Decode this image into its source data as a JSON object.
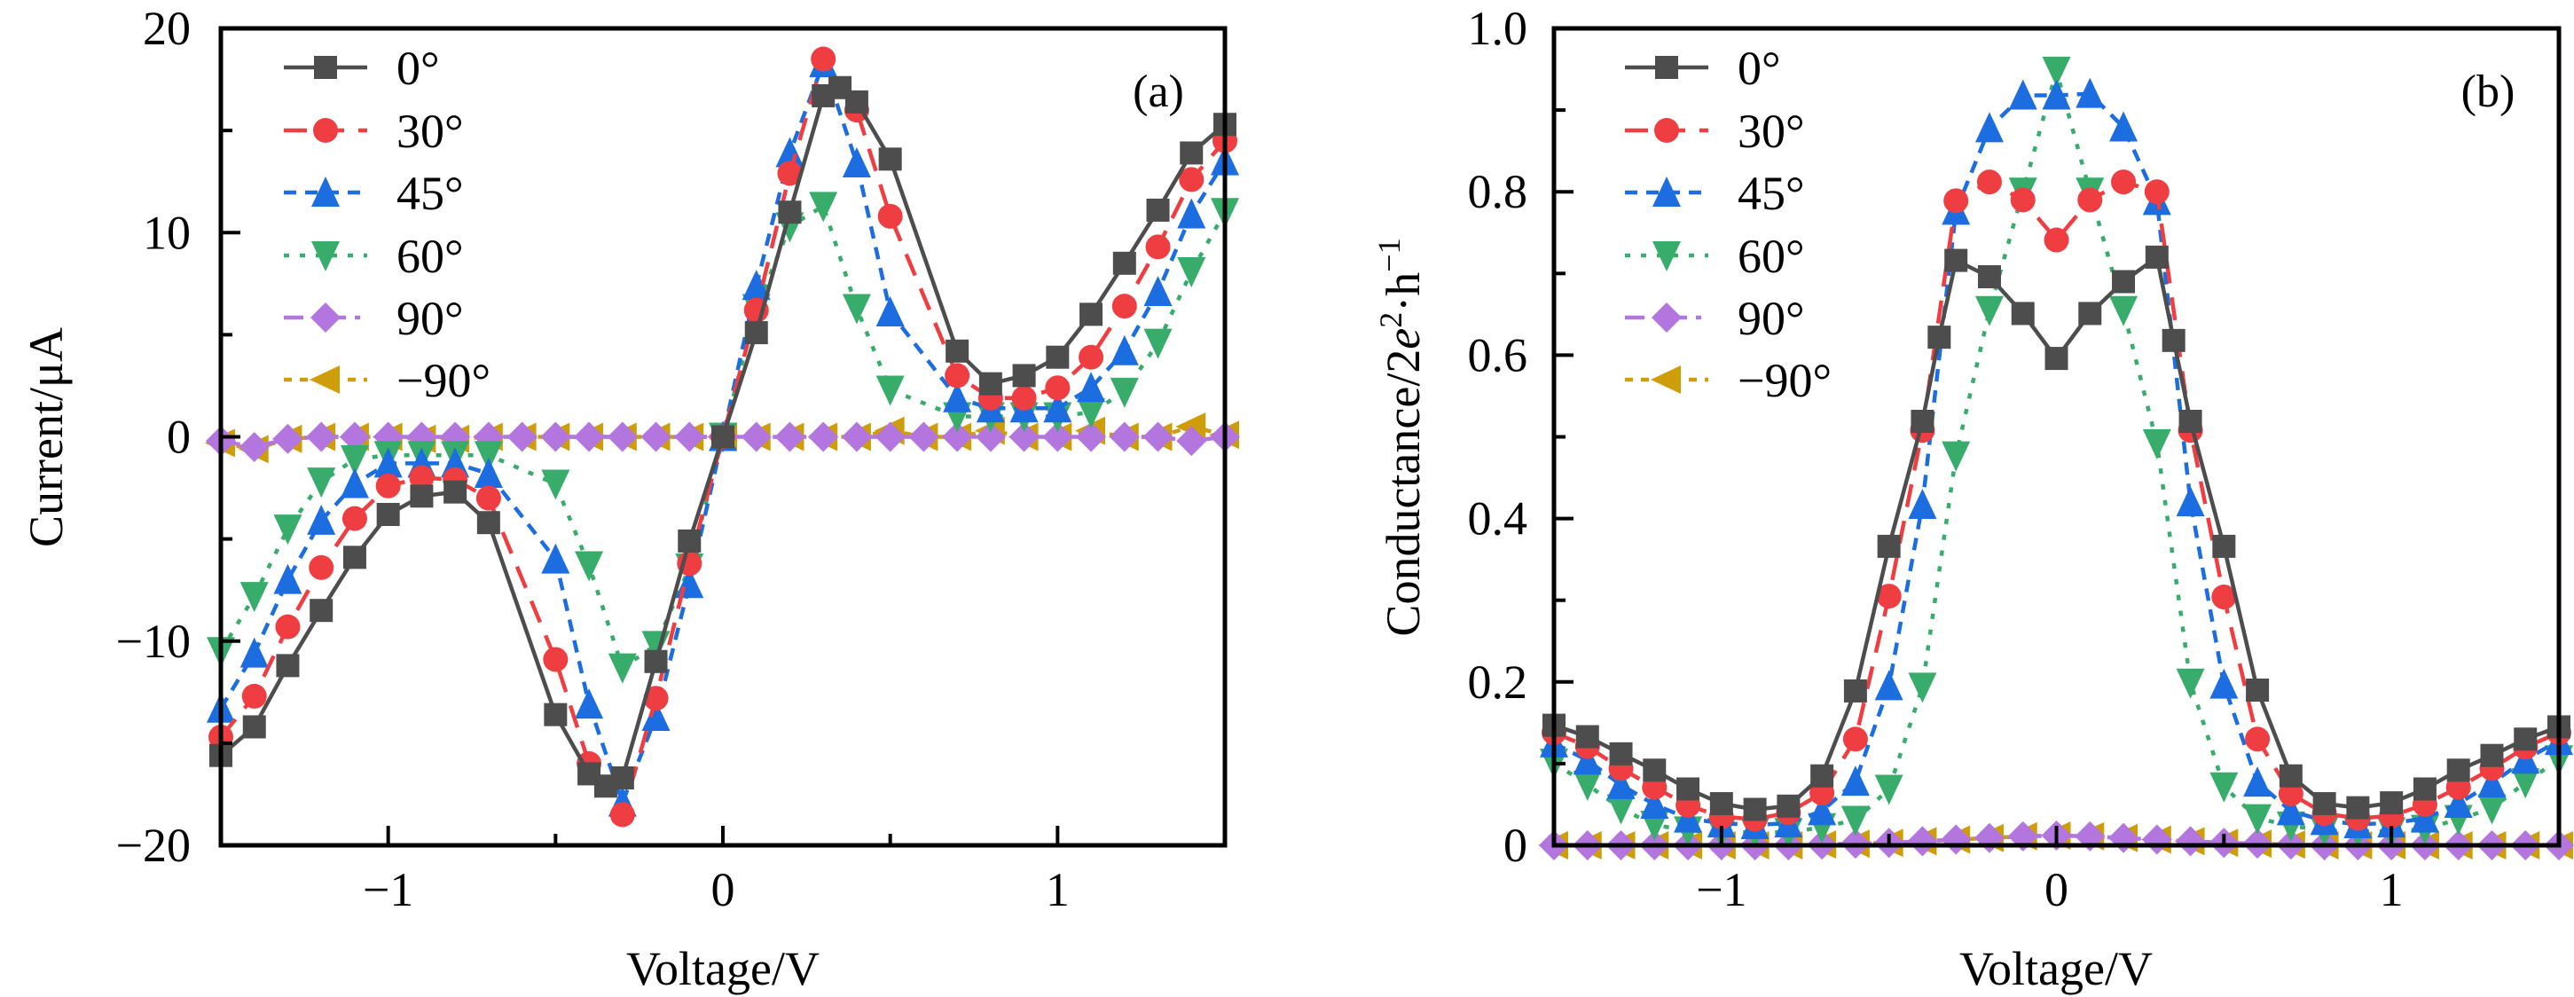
{
  "figure": {
    "panels": [
      {
        "id": "a",
        "panel_label": "(a)",
        "xlabel": "Voltage/V",
        "ylabel": "Current/μA"
      },
      {
        "id": "b",
        "panel_label": "(b)",
        "xlabel": "Voltage/V",
        "ylabel_main": "Conductance/2",
        "ylabel_e": "e",
        "ylabel_sup1": "2",
        "ylabel_mid": "·h",
        "ylabel_sup2": "−1"
      }
    ]
  },
  "chart_data": [
    {
      "type": "line",
      "title": "(a)",
      "xlabel": "Voltage/V",
      "ylabel": "Current/μA",
      "xlim": [
        -1.5,
        1.5
      ],
      "ylim": [
        -20,
        20
      ],
      "xticks": [
        {
          "value": -1,
          "label": "−1"
        },
        {
          "value": 0,
          "label": "0"
        },
        {
          "value": 1,
          "label": "1"
        }
      ],
      "xminor": [
        -0.5,
        0.5
      ],
      "yticks": [
        {
          "value": -20,
          "label": "−20"
        },
        {
          "value": -10,
          "label": "−10"
        },
        {
          "value": 0,
          "label": "0"
        },
        {
          "value": 10,
          "label": "10"
        },
        {
          "value": 20,
          "label": "20"
        }
      ],
      "yminor": [
        -15,
        -5,
        5,
        15
      ],
      "grid": false,
      "legend_position": "top-left",
      "series": [
        {
          "name": "0°",
          "color": "#4d4d4d",
          "marker": "square",
          "line": "solid",
          "x": [
            -1.5,
            -1.4,
            -1.3,
            -1.2,
            -1.1,
            -1.0,
            -0.9,
            -0.8,
            -0.7,
            -0.5,
            -0.4,
            -0.35,
            -0.3,
            -0.2,
            -0.1,
            0,
            0.1,
            0.2,
            0.3,
            0.35,
            0.4,
            0.5,
            0.7,
            0.8,
            0.9,
            1.0,
            1.1,
            1.2,
            1.3,
            1.4,
            1.5
          ],
          "y": [
            -15.6,
            -14.2,
            -11.2,
            -8.5,
            -5.9,
            -3.8,
            -2.9,
            -2.7,
            -4.2,
            -13.6,
            -16.5,
            -17.1,
            -16.7,
            -11.0,
            -5.1,
            0,
            5.1,
            11.0,
            16.7,
            17.1,
            16.4,
            13.6,
            4.2,
            2.6,
            3.0,
            3.9,
            6.0,
            8.5,
            11.1,
            13.9,
            15.3
          ]
        },
        {
          "name": "30°",
          "color": "#ef3e42",
          "marker": "circle",
          "line": "dash",
          "x": [
            -1.5,
            -1.4,
            -1.3,
            -1.2,
            -1.1,
            -1.0,
            -0.9,
            -0.8,
            -0.7,
            -0.5,
            -0.4,
            -0.3,
            -0.2,
            -0.1,
            0,
            0.1,
            0.2,
            0.3,
            0.4,
            0.5,
            0.7,
            0.8,
            0.9,
            1.0,
            1.1,
            1.2,
            1.3,
            1.4,
            1.5
          ],
          "y": [
            -14.7,
            -12.7,
            -9.3,
            -6.4,
            -4.0,
            -2.4,
            -2.0,
            -2.1,
            -3.0,
            -10.9,
            -16.0,
            -18.5,
            -12.8,
            -6.2,
            0,
            6.2,
            12.9,
            18.5,
            16.0,
            10.8,
            3.0,
            1.9,
            1.9,
            2.4,
            3.9,
            6.4,
            9.3,
            12.6,
            14.5
          ]
        },
        {
          "name": "45°",
          "color": "#1c6ee0",
          "marker": "triangle-up",
          "line": "short-dash",
          "x": [
            -1.5,
            -1.4,
            -1.3,
            -1.2,
            -1.1,
            -1.0,
            -0.9,
            -0.8,
            -0.7,
            -0.5,
            -0.4,
            -0.3,
            -0.2,
            -0.1,
            0,
            0.1,
            0.2,
            0.3,
            0.4,
            0.5,
            0.7,
            0.8,
            0.9,
            1.0,
            1.1,
            1.2,
            1.3,
            1.4,
            1.5
          ],
          "y": [
            -13.3,
            -10.6,
            -7.0,
            -4.1,
            -2.3,
            -1.3,
            -1.3,
            -1.3,
            -1.8,
            -6.0,
            -13.1,
            -17.9,
            -13.7,
            -7.2,
            0,
            7.4,
            13.9,
            18.3,
            13.4,
            6.1,
            1.9,
            1.4,
            1.4,
            1.4,
            2.4,
            4.2,
            7.1,
            10.9,
            13.5
          ]
        },
        {
          "name": "60°",
          "color": "#38ac6b",
          "marker": "triangle-down",
          "line": "dot",
          "x": [
            -1.5,
            -1.4,
            -1.3,
            -1.2,
            -1.1,
            -1.0,
            -0.9,
            -0.8,
            -0.7,
            -0.5,
            -0.4,
            -0.3,
            -0.2,
            -0.1,
            0,
            0.1,
            0.2,
            0.3,
            0.4,
            0.5,
            0.7,
            0.8,
            0.9,
            1.0,
            1.1,
            1.2,
            1.3,
            1.4,
            1.5
          ],
          "y": [
            -10.5,
            -7.8,
            -4.5,
            -2.2,
            -1.1,
            -0.9,
            -0.9,
            -0.9,
            -0.9,
            -2.3,
            -6.3,
            -11.3,
            -10.2,
            -6.4,
            0,
            6.3,
            10.3,
            11.3,
            6.3,
            2.3,
            1.0,
            1.0,
            1.0,
            1.0,
            1.2,
            2.2,
            4.6,
            8.1,
            11.0
          ]
        },
        {
          "name": "90°",
          "color": "#b276de",
          "marker": "diamond",
          "line": "dash-dot",
          "x": [
            -1.5,
            -1.4,
            -1.3,
            -1.2,
            -1.1,
            -1.0,
            -0.9,
            -0.8,
            -0.7,
            -0.6,
            -0.5,
            -0.4,
            -0.3,
            -0.2,
            -0.1,
            0,
            0.1,
            0.2,
            0.3,
            0.4,
            0.5,
            0.6,
            0.7,
            0.8,
            0.9,
            1.0,
            1.1,
            1.2,
            1.3,
            1.4,
            1.5
          ],
          "y": [
            -0.2,
            -0.5,
            -0.1,
            0,
            0,
            0,
            0,
            0,
            0,
            0,
            0,
            0,
            0,
            0,
            0,
            0,
            0,
            0,
            0,
            0,
            0,
            0,
            0,
            0,
            0,
            0,
            0,
            0,
            0,
            -0.2,
            0
          ]
        },
        {
          "name": "−90°",
          "color": "#d09d0a",
          "marker": "triangle-left",
          "line": "short-dot",
          "x": [
            -1.5,
            -1.4,
            -1.3,
            -1.2,
            -1.1,
            -1.0,
            -0.9,
            -0.8,
            -0.7,
            -0.6,
            -0.5,
            -0.4,
            -0.3,
            -0.2,
            -0.1,
            0,
            0.1,
            0.2,
            0.3,
            0.4,
            0.5,
            0.6,
            0.7,
            0.8,
            0.9,
            1.0,
            1.1,
            1.2,
            1.3,
            1.4,
            1.5
          ],
          "y": [
            -0.3,
            -0.6,
            -0.1,
            0,
            0,
            0,
            -0.1,
            -0.1,
            0,
            0,
            0,
            0,
            0,
            0,
            0,
            0,
            0,
            0,
            0,
            0,
            0.3,
            0,
            0,
            0.3,
            0,
            0,
            0.3,
            0,
            0,
            0.5,
            0.1
          ]
        }
      ]
    },
    {
      "type": "line",
      "title": "(b)",
      "xlabel": "Voltage/V",
      "ylabel": "Conductance/2e²·h⁻¹",
      "xlim": [
        -1.5,
        1.5
      ],
      "ylim": [
        0,
        1.0
      ],
      "xticks": [
        {
          "value": -1,
          "label": "−1"
        },
        {
          "value": 0,
          "label": "0"
        },
        {
          "value": 1,
          "label": "1"
        }
      ],
      "xminor": [
        -0.5,
        0.5
      ],
      "yticks": [
        {
          "value": 0,
          "label": "0"
        },
        {
          "value": 0.2,
          "label": "0.2"
        },
        {
          "value": 0.4,
          "label": "0.4"
        },
        {
          "value": 0.6,
          "label": "0.6"
        },
        {
          "value": 0.8,
          "label": "0.8"
        },
        {
          "value": 1.0,
          "label": "1.0"
        }
      ],
      "yminor": [
        0.1,
        0.3,
        0.5,
        0.7,
        0.9
      ],
      "grid": false,
      "legend_position": "top-left",
      "series": [
        {
          "name": "0°",
          "color": "#4d4d4d",
          "marker": "square",
          "line": "solid",
          "x": [
            -1.5,
            -1.4,
            -1.3,
            -1.2,
            -1.1,
            -1.0,
            -0.9,
            -0.8,
            -0.7,
            -0.6,
            -0.5,
            -0.4,
            -0.35,
            -0.3,
            -0.2,
            -0.1,
            0,
            0.1,
            0.2,
            0.3,
            0.35,
            0.4,
            0.5,
            0.6,
            0.7,
            0.8,
            0.9,
            1.0,
            1.1,
            1.2,
            1.3,
            1.4,
            1.5
          ],
          "y": [
            0.147,
            0.133,
            0.112,
            0.092,
            0.069,
            0.051,
            0.044,
            0.048,
            0.085,
            0.189,
            0.366,
            0.519,
            0.622,
            0.716,
            0.696,
            0.651,
            0.596,
            0.651,
            0.69,
            0.72,
            0.618,
            0.519,
            0.366,
            0.19,
            0.085,
            0.051,
            0.046,
            0.052,
            0.069,
            0.092,
            0.11,
            0.13,
            0.145
          ]
        },
        {
          "name": "30°",
          "color": "#ef3e42",
          "marker": "circle",
          "line": "dash",
          "x": [
            -1.5,
            -1.4,
            -1.3,
            -1.2,
            -1.1,
            -1.0,
            -0.9,
            -0.8,
            -0.7,
            -0.6,
            -0.5,
            -0.4,
            -0.3,
            -0.2,
            -0.1,
            0,
            0.1,
            0.2,
            0.3,
            0.4,
            0.5,
            0.6,
            0.7,
            0.8,
            0.9,
            1.0,
            1.1,
            1.2,
            1.3,
            1.4,
            1.5
          ],
          "y": [
            0.138,
            0.121,
            0.094,
            0.071,
            0.049,
            0.035,
            0.032,
            0.04,
            0.064,
            0.13,
            0.305,
            0.508,
            0.789,
            0.812,
            0.79,
            0.741,
            0.79,
            0.812,
            0.8,
            0.508,
            0.304,
            0.13,
            0.063,
            0.039,
            0.033,
            0.036,
            0.05,
            0.071,
            0.094,
            0.12,
            0.138
          ]
        },
        {
          "name": "45°",
          "color": "#1c6ee0",
          "marker": "triangle-up",
          "line": "short-dash",
          "x": [
            -1.5,
            -1.4,
            -1.3,
            -1.2,
            -1.1,
            -1.0,
            -0.9,
            -0.8,
            -0.7,
            -0.6,
            -0.5,
            -0.4,
            -0.3,
            -0.2,
            -0.1,
            0,
            0.1,
            0.2,
            0.3,
            0.4,
            0.5,
            0.6,
            0.7,
            0.8,
            0.9,
            1.0,
            1.1,
            1.2,
            1.3,
            1.4,
            1.5
          ],
          "y": [
            0.125,
            0.104,
            0.074,
            0.05,
            0.033,
            0.027,
            0.025,
            0.027,
            0.042,
            0.078,
            0.195,
            0.417,
            0.777,
            0.878,
            0.918,
            0.918,
            0.92,
            0.879,
            0.789,
            0.42,
            0.197,
            0.077,
            0.042,
            0.03,
            0.026,
            0.027,
            0.033,
            0.051,
            0.076,
            0.105,
            0.128
          ]
        },
        {
          "name": "60°",
          "color": "#38ac6b",
          "marker": "triangle-down",
          "line": "dot",
          "x": [
            -1.5,
            -1.4,
            -1.3,
            -1.2,
            -1.1,
            -1.0,
            -0.9,
            -0.8,
            -0.7,
            -0.6,
            -0.5,
            -0.4,
            -0.3,
            -0.2,
            -0.1,
            0,
            0.1,
            0.2,
            0.3,
            0.4,
            0.5,
            0.6,
            0.7,
            0.8,
            0.9,
            1.0,
            1.1,
            1.2,
            1.3,
            1.4,
            1.5
          ],
          "y": [
            0.101,
            0.074,
            0.045,
            0.025,
            0.018,
            0.016,
            0.016,
            0.016,
            0.022,
            0.031,
            0.069,
            0.194,
            0.477,
            0.655,
            0.8,
            0.948,
            0.8,
            0.655,
            0.492,
            0.199,
            0.072,
            0.033,
            0.024,
            0.018,
            0.017,
            0.017,
            0.02,
            0.032,
            0.045,
            0.077,
            0.105
          ]
        },
        {
          "name": "90°",
          "color": "#b276de",
          "marker": "diamond",
          "line": "dash-dot",
          "x": [
            -1.5,
            -1.4,
            -1.3,
            -1.2,
            -1.1,
            -1.0,
            -0.9,
            -0.8,
            -0.7,
            -0.6,
            -0.5,
            -0.4,
            -0.3,
            -0.2,
            -0.1,
            0,
            0.1,
            0.2,
            0.3,
            0.4,
            0.5,
            0.6,
            0.7,
            0.8,
            0.9,
            1.0,
            1.1,
            1.2,
            1.3,
            1.4,
            1.5
          ],
          "y": [
            0,
            0,
            0,
            0,
            0,
            0,
            0,
            0,
            0.001,
            0.002,
            0.003,
            0.005,
            0.007,
            0.009,
            0.011,
            0.012,
            0.011,
            0.009,
            0.007,
            0.005,
            0.003,
            0.002,
            0.001,
            0,
            0,
            0,
            0,
            0,
            0,
            0,
            0
          ]
        },
        {
          "name": "−90°",
          "color": "#d09d0a",
          "marker": "triangle-left",
          "line": "short-dot",
          "x": [
            -1.5,
            -1.4,
            -1.3,
            -1.2,
            -1.1,
            -1.0,
            -0.9,
            -0.8,
            -0.7,
            -0.6,
            -0.5,
            -0.4,
            -0.3,
            -0.2,
            -0.1,
            0,
            0.1,
            0.2,
            0.3,
            0.4,
            0.5,
            0.6,
            0.7,
            0.8,
            0.9,
            1.0,
            1.1,
            1.2,
            1.3,
            1.4,
            1.5
          ],
          "y": [
            0,
            0,
            0,
            0,
            0,
            0,
            0,
            0,
            0.001,
            0.002,
            0.003,
            0.005,
            0.007,
            0.009,
            0.011,
            0.012,
            0.011,
            0.009,
            0.007,
            0.005,
            0.003,
            0.002,
            0.001,
            0,
            0,
            0,
            0,
            0,
            0,
            0,
            0
          ]
        }
      ]
    }
  ]
}
